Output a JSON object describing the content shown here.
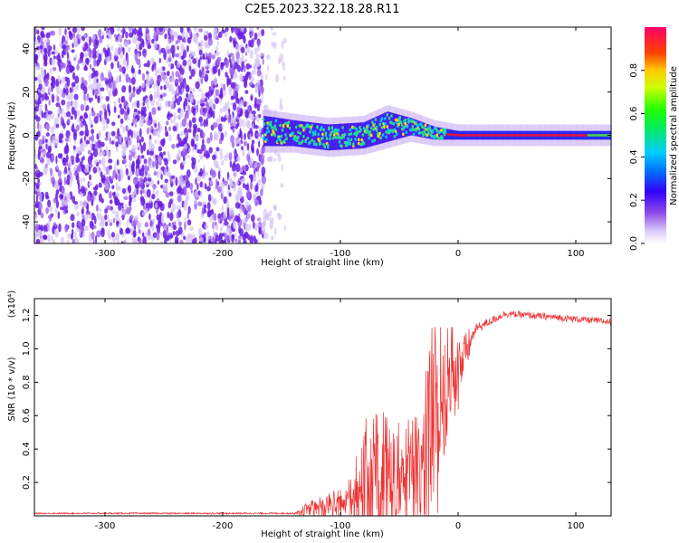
{
  "title": "C2E5.2023.322.18.28.R11",
  "chart_data": [
    {
      "type": "heatmap",
      "name": "spectrogram",
      "xlabel": "Height of straight line (km)",
      "ylabel": "Frequency (Hz)",
      "xlim": [
        -360,
        130
      ],
      "ylim": [
        -50,
        50
      ],
      "xticks": [
        -300,
        -200,
        -100,
        0,
        100
      ],
      "yticks": [
        -40,
        -20,
        0,
        20,
        40
      ],
      "noise_region_x": [
        -360,
        -165
      ],
      "signal_band": [
        {
          "x": -165,
          "center": 2,
          "halfwidth": 7
        },
        {
          "x": -140,
          "center": 1,
          "halfwidth": 6
        },
        {
          "x": -110,
          "center": -1,
          "halfwidth": 6
        },
        {
          "x": -80,
          "center": 0,
          "halfwidth": 6
        },
        {
          "x": -60,
          "center": 4,
          "halfwidth": 7
        },
        {
          "x": -40,
          "center": 4,
          "halfwidth": 4
        },
        {
          "x": -20,
          "center": 1,
          "halfwidth": 3
        },
        {
          "x": 0,
          "center": 0,
          "halfwidth": 2
        },
        {
          "x": 130,
          "center": 0,
          "halfwidth": 2
        }
      ],
      "colorbar": {
        "label": "Normalized spectral amplitude",
        "range": [
          0,
          1
        ],
        "ticks": [
          0.0,
          0.2,
          0.4,
          0.6,
          0.8
        ]
      }
    },
    {
      "type": "line",
      "name": "snr",
      "xlabel": "Height of straight line (km)",
      "ylabel": "SNR (10 * v/v)",
      "multiplier": "(x10⁴)",
      "color": "#ee3333",
      "xlim": [
        -360,
        130
      ],
      "ylim": [
        0,
        1.3
      ],
      "xticks": [
        -300,
        -200,
        -100,
        0,
        100
      ],
      "yticks": [
        0.2,
        0.4,
        0.6,
        0.8,
        1.0,
        1.2
      ],
      "envelope": [
        {
          "x": -360,
          "base": 0.015,
          "amp": 0.008
        },
        {
          "x": -140,
          "base": 0.015,
          "amp": 0.01
        },
        {
          "x": -130,
          "base": 0.03,
          "amp": 0.04
        },
        {
          "x": -110,
          "base": 0.04,
          "amp": 0.08
        },
        {
          "x": -90,
          "base": 0.05,
          "amp": 0.15
        },
        {
          "x": -80,
          "base": 0.1,
          "amp": 0.45
        },
        {
          "x": -60,
          "base": 0.12,
          "amp": 0.45
        },
        {
          "x": -45,
          "base": 0.15,
          "amp": 0.35
        },
        {
          "x": -30,
          "base": 0.2,
          "amp": 0.4
        },
        {
          "x": -22,
          "base": 0.4,
          "amp": 0.85
        },
        {
          "x": -15,
          "base": 0.6,
          "amp": 0.45
        },
        {
          "x": -5,
          "base": 0.75,
          "amp": 0.35
        },
        {
          "x": 5,
          "base": 0.95,
          "amp": 0.15
        },
        {
          "x": 15,
          "base": 1.12,
          "amp": 0.06
        },
        {
          "x": 40,
          "base": 1.21,
          "amp": 0.04
        },
        {
          "x": 80,
          "base": 1.19,
          "amp": 0.04
        },
        {
          "x": 130,
          "base": 1.16,
          "amp": 0.04
        }
      ]
    }
  ]
}
